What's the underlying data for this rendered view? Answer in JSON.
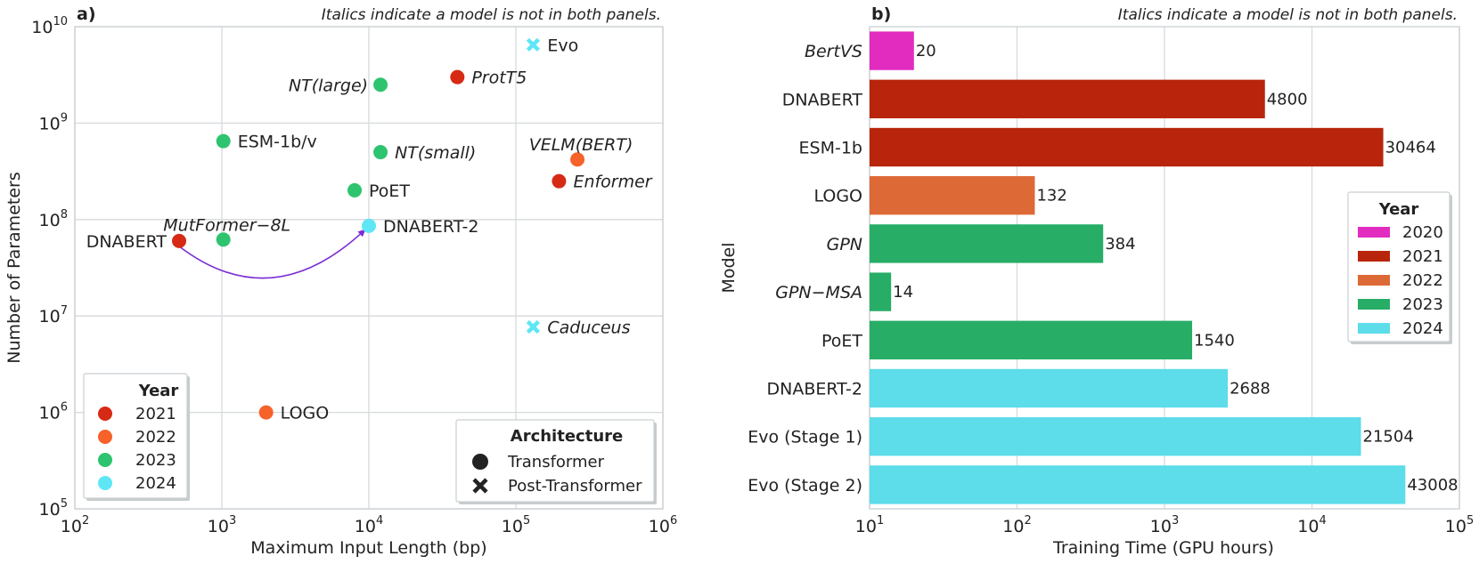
{
  "chart_data": [
    {
      "panel": "a)",
      "type": "scatter",
      "note": "Italics indicate a model is not in both panels.",
      "xlabel": "Maximum Input Length (bp)",
      "ylabel": "Number of Parameters",
      "xscale": "log",
      "yscale": "log",
      "xlim": [
        100,
        1000000
      ],
      "ylim": [
        100000,
        10000000000
      ],
      "xticks": [
        {
          "base": "10",
          "exp": "2",
          "value": 100
        },
        {
          "base": "10",
          "exp": "3",
          "value": 1000
        },
        {
          "base": "10",
          "exp": "4",
          "value": 10000
        },
        {
          "base": "10",
          "exp": "5",
          "value": 100000
        },
        {
          "base": "10",
          "exp": "6",
          "value": 1000000
        }
      ],
      "yticks": [
        {
          "base": "10",
          "exp": "5",
          "value": 100000
        },
        {
          "base": "10",
          "exp": "6",
          "value": 1000000
        },
        {
          "base": "10",
          "exp": "7",
          "value": 10000000
        },
        {
          "base": "10",
          "exp": "8",
          "value": 100000000
        },
        {
          "base": "10",
          "exp": "9",
          "value": 1000000000
        },
        {
          "base": "10",
          "exp": "10",
          "value": 10000000000
        }
      ],
      "points": [
        {
          "label": "DNABERT",
          "x": 512,
          "y": 60000000,
          "year": "2021",
          "arch": "Transformer",
          "italic": false,
          "label_side": "left"
        },
        {
          "label": "ProtT5",
          "x": 40000,
          "y": 3000000000,
          "year": "2021",
          "arch": "Transformer",
          "italic": true,
          "label_side": "right"
        },
        {
          "label": "Enformer",
          "x": 196608,
          "y": 250000000,
          "year": "2021",
          "arch": "Transformer",
          "italic": true,
          "label_side": "right"
        },
        {
          "label": "LOGO",
          "x": 2000,
          "y": 1000000,
          "year": "2022",
          "arch": "Transformer",
          "italic": false,
          "label_side": "right"
        },
        {
          "label": "VELM(BERT)",
          "x": 262144,
          "y": 420000000,
          "year": "2022",
          "arch": "Transformer",
          "italic": true,
          "label_side": "above"
        },
        {
          "label": "ESM-1b/v",
          "x": 1024,
          "y": 650000000,
          "year": "2023",
          "arch": "Transformer",
          "italic": false,
          "label_side": "right"
        },
        {
          "label": "MutFormer−8L",
          "x": 1024,
          "y": 62000000,
          "year": "2023",
          "arch": "Transformer",
          "italic": true,
          "label_side": "above"
        },
        {
          "label": "NT(large)",
          "x": 12000,
          "y": 2500000000,
          "year": "2023",
          "arch": "Transformer",
          "italic": true,
          "label_side": "left"
        },
        {
          "label": "NT(small)",
          "x": 12000,
          "y": 500000000,
          "year": "2023",
          "arch": "Transformer",
          "italic": true,
          "label_side": "right"
        },
        {
          "label": "PoET",
          "x": 8000,
          "y": 201000000,
          "year": "2023",
          "arch": "Transformer",
          "italic": false,
          "label_side": "right"
        },
        {
          "label": "DNABERT-2",
          "x": 10000,
          "y": 86000000,
          "year": "2024",
          "arch": "Transformer",
          "italic": false,
          "label_side": "right"
        },
        {
          "label": "Evo",
          "x": 131072,
          "y": 6500000000,
          "year": "2024",
          "arch": "Post-Transformer",
          "italic": false,
          "label_side": "right"
        },
        {
          "label": "Caduceus",
          "x": 131072,
          "y": 7700000,
          "year": "2024",
          "arch": "Post-Transformer",
          "italic": true,
          "label_side": "right"
        }
      ],
      "arrow": {
        "from": "DNABERT",
        "to": "DNABERT-2",
        "color": "#7b2fd6"
      },
      "year_legend": {
        "title": "Year",
        "placement": "lower-left",
        "entries": [
          {
            "label": "2021",
            "color": "#d62a14"
          },
          {
            "label": "2022",
            "color": "#f5622a"
          },
          {
            "label": "2023",
            "color": "#2ec46f"
          },
          {
            "label": "2024",
            "color": "#5ee6f5"
          }
        ]
      },
      "arch_legend": {
        "title": "Architecture",
        "placement": "lower-right",
        "entries": [
          {
            "label": "Transformer",
            "marker": "circle"
          },
          {
            "label": "Post-Transformer",
            "marker": "cross"
          }
        ]
      }
    },
    {
      "panel": "b)",
      "type": "bar",
      "orientation": "horizontal",
      "note": "Italics indicate a model is not in both panels.",
      "xlabel": "Training Time (GPU hours)",
      "ylabel": "Model",
      "xscale": "log",
      "xlim": [
        10,
        100000
      ],
      "xticks": [
        {
          "base": "10",
          "exp": "1",
          "value": 10
        },
        {
          "base": "10",
          "exp": "2",
          "value": 100
        },
        {
          "base": "10",
          "exp": "3",
          "value": 1000
        },
        {
          "base": "10",
          "exp": "4",
          "value": 10000
        },
        {
          "base": "10",
          "exp": "5",
          "value": 100000
        }
      ],
      "bars": [
        {
          "label": "BertVS",
          "value": 20,
          "value_label": "20",
          "year": "2020",
          "italic": true
        },
        {
          "label": "DNABERT",
          "value": 4800,
          "value_label": "4800",
          "year": "2021",
          "italic": false
        },
        {
          "label": "ESM-1b",
          "value": 30464,
          "value_label": "30464",
          "year": "2021",
          "italic": false
        },
        {
          "label": "LOGO",
          "value": 132,
          "value_label": "132",
          "year": "2022",
          "italic": false
        },
        {
          "label": "GPN",
          "value": 384,
          "value_label": "384",
          "year": "2023",
          "italic": true
        },
        {
          "label": "GPN−MSA",
          "value": 14,
          "value_label": "14",
          "year": "2023",
          "italic": true
        },
        {
          "label": "PoET",
          "value": 1540,
          "value_label": "1540",
          "year": "2023",
          "italic": false
        },
        {
          "label": "DNABERT-2",
          "value": 2688,
          "value_label": "2688",
          "year": "2024",
          "italic": false
        },
        {
          "label": "Evo (Stage 1)",
          "value": 21504,
          "value_label": "21504",
          "year": "2024",
          "italic": false
        },
        {
          "label": "Evo (Stage 2)",
          "value": 43008,
          "value_label": "43008",
          "year": "2024",
          "italic": false
        }
      ],
      "year_colors": {
        "2020": "#e22cc0",
        "2021": "#b8250c",
        "2022": "#dc6936",
        "2023": "#27ad66",
        "2024": "#5ddcea"
      },
      "legend": {
        "title": "Year",
        "placement": "right",
        "entries": [
          {
            "label": "2020",
            "color": "#e22cc0"
          },
          {
            "label": "2021",
            "color": "#b8250c"
          },
          {
            "label": "2022",
            "color": "#dc6936"
          },
          {
            "label": "2023",
            "color": "#27ad66"
          },
          {
            "label": "2024",
            "color": "#5ddcea"
          }
        ]
      }
    }
  ]
}
